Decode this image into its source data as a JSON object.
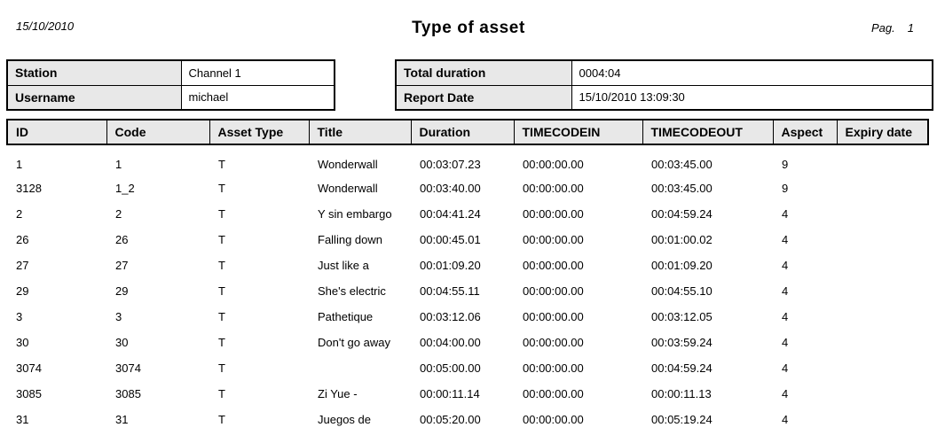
{
  "header": {
    "date": "15/10/2010",
    "title": "Type of asset",
    "pag_label": "Pag.",
    "pag_number": "1"
  },
  "info_left": {
    "station_label": "Station",
    "station_value": "Channel 1",
    "username_label": "Username",
    "username_value": "michael"
  },
  "info_right": {
    "total_duration_label": "Total duration",
    "total_duration_value": "0004:04",
    "report_date_label": "Report Date",
    "report_date_value": "15/10/2010 13:09:30"
  },
  "colors": {
    "header_cell_bg": "#e8e8e8",
    "border": "#000000",
    "text": "#000000"
  },
  "table": {
    "columns": [
      "ID",
      "Code",
      "Asset Type",
      "Title",
      "Duration",
      "TIMECODEIN",
      "TIMECODEOUT",
      "Aspect",
      "Expiry date"
    ],
    "rows": [
      {
        "id": "1",
        "code": "1",
        "asset_type": "T",
        "title": "Wonderwall",
        "duration": "00:03:07.23",
        "timecode_in": "00:00:00.00",
        "timecode_out": "00:03:45.00",
        "aspect": "9",
        "expiry_date": ""
      },
      {
        "id": "3128",
        "code": "1_2",
        "asset_type": "T",
        "title": "Wonderwall",
        "duration": "00:03:40.00",
        "timecode_in": "00:00:00.00",
        "timecode_out": "00:03:45.00",
        "aspect": "9",
        "expiry_date": ""
      },
      {
        "id": "2",
        "code": "2",
        "asset_type": "T",
        "title": "Y sin embargo",
        "duration": "00:04:41.24",
        "timecode_in": "00:00:00.00",
        "timecode_out": "00:04:59.24",
        "aspect": "4",
        "expiry_date": ""
      },
      {
        "id": "26",
        "code": "26",
        "asset_type": "T",
        "title": "Falling down",
        "duration": "00:00:45.01",
        "timecode_in": "00:00:00.00",
        "timecode_out": "00:01:00.02",
        "aspect": "4",
        "expiry_date": ""
      },
      {
        "id": "27",
        "code": "27",
        "asset_type": "T",
        "title": "Just like a",
        "duration": "00:01:09.20",
        "timecode_in": "00:00:00.00",
        "timecode_out": "00:01:09.20",
        "aspect": "4",
        "expiry_date": ""
      },
      {
        "id": "29",
        "code": "29",
        "asset_type": "T",
        "title": "She's electric",
        "duration": "00:04:55.11",
        "timecode_in": "00:00:00.00",
        "timecode_out": "00:04:55.10",
        "aspect": "4",
        "expiry_date": ""
      },
      {
        "id": "3",
        "code": "3",
        "asset_type": "T",
        "title": "Pathetique",
        "duration": "00:03:12.06",
        "timecode_in": "00:00:00.00",
        "timecode_out": "00:03:12.05",
        "aspect": "4",
        "expiry_date": ""
      },
      {
        "id": "30",
        "code": "30",
        "asset_type": "T",
        "title": "Don't go away",
        "duration": "00:04:00.00",
        "timecode_in": "00:00:00.00",
        "timecode_out": "00:03:59.24",
        "aspect": "4",
        "expiry_date": ""
      },
      {
        "id": "3074",
        "code": "3074",
        "asset_type": "T",
        "title": "",
        "duration": "00:05:00.00",
        "timecode_in": "00:00:00.00",
        "timecode_out": "00:04:59.24",
        "aspect": "4",
        "expiry_date": ""
      },
      {
        "id": "3085",
        "code": "3085",
        "asset_type": "T",
        "title": "Zi Yue -",
        "duration": "00:00:11.14",
        "timecode_in": "00:00:00.00",
        "timecode_out": "00:00:11.13",
        "aspect": "4",
        "expiry_date": ""
      },
      {
        "id": "31",
        "code": "31",
        "asset_type": "T",
        "title": "Juegos de",
        "duration": "00:05:20.00",
        "timecode_in": "00:00:00.00",
        "timecode_out": "00:05:19.24",
        "aspect": "4",
        "expiry_date": ""
      }
    ]
  }
}
